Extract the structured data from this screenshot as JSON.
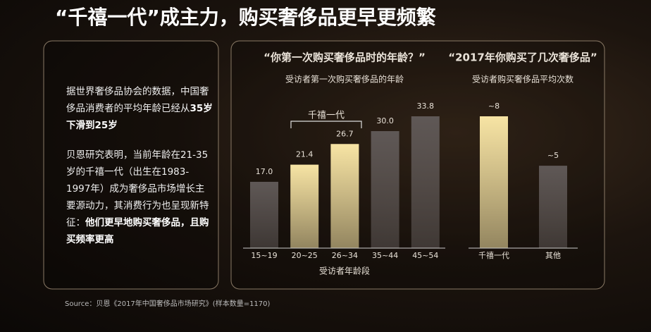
{
  "header": {
    "title": "“千禧一代”成主力，购买奢侈品更早更频繁"
  },
  "panel": {
    "paragraphs": [
      {
        "text": "据世界奢侈品协会的数据，中国奢侈品消费者的平均年龄已经从",
        "bold": "35岁下滑到25岁"
      },
      {
        "text": "贝恩研究表明，当前年龄在21-35岁的千禧一代（出生在1983-1997年）成为奢侈品市场增长主要源动力，其消费行为也呈现新特征：",
        "bold": "他们更早地购买奢侈品，且购买频率更高"
      }
    ]
  },
  "source": "Source：贝恩《2017年中国奢侈品市场研究》(样本数量=1170)",
  "chart_data": [
    {
      "type": "bar",
      "title": "“你第一次购买奢侈品时的年龄？”",
      "subtitle": "受访者第一次购买奢侈品的年龄",
      "x_label": "受访者年龄段",
      "annotation": "千禧一代",
      "categories": [
        "15~19",
        "20~25",
        "26~34",
        "35~44",
        "45~54"
      ],
      "values": [
        17.0,
        21.4,
        26.7,
        30.0,
        33.8
      ],
      "value_labels": [
        "17.0",
        "21.4",
        "26.7",
        "30.0",
        "33.8"
      ],
      "colors": [
        "#5f5856",
        "#f7e4a4",
        "#f7e4a4",
        "#5f5856",
        "#5f5856"
      ]
    },
    {
      "type": "bar",
      "title": "“2017年你购买了几次奢侈品”",
      "subtitle": "受访者购买奢侈品平均次数",
      "categories": [
        "千禧一代",
        "其他"
      ],
      "values": [
        8,
        5
      ],
      "value_labels": [
        "~8",
        "~5"
      ],
      "colors": [
        "#f7e4a4",
        "#5f5856"
      ]
    }
  ]
}
